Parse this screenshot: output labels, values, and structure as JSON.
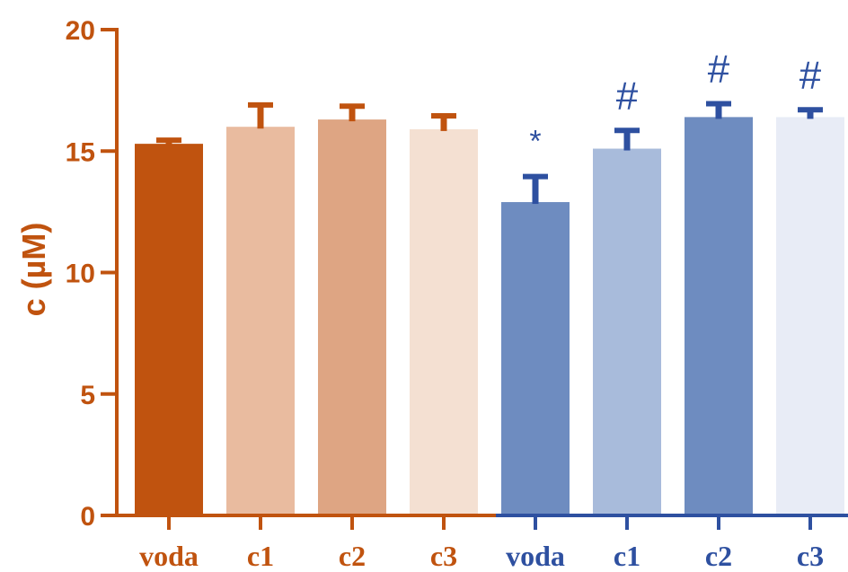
{
  "chart_data": {
    "type": "bar",
    "title": "",
    "xlabel": "",
    "ylabel": "c (µM)",
    "ylim": [
      0,
      20
    ],
    "yticks": [
      0,
      5,
      10,
      15,
      20
    ],
    "grid": false,
    "categories": [
      "voda",
      "c1",
      "c2",
      "c3",
      "voda",
      "c1",
      "c2",
      "c3"
    ],
    "values": [
      15.3,
      16.0,
      16.3,
      15.9,
      12.9,
      15.1,
      16.4,
      16.4
    ],
    "errors": [
      0.15,
      0.9,
      0.55,
      0.55,
      1.05,
      0.75,
      0.55,
      0.3
    ],
    "annotations": [
      "",
      "",
      "",
      "",
      "*",
      "#",
      "#",
      "#"
    ],
    "colors": [
      "#c0530f",
      "#e9bb9f",
      "#dea583",
      "#f4e0d2",
      "#6e8cc0",
      "#a8bbdb",
      "#6e8cc0",
      "#e8ecf6"
    ],
    "group_colors": [
      "#c0530f",
      "#2e50a0"
    ],
    "axis_color_left": "#c0530f",
    "axis_color_right": "#2e50a0"
  }
}
